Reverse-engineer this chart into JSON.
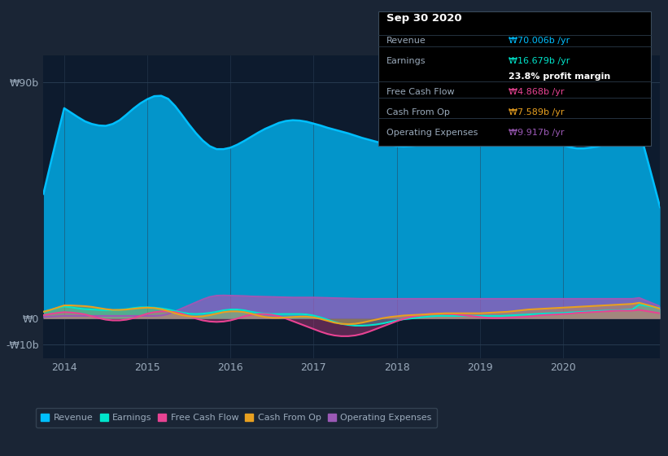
{
  "bg_color": "#1a2535",
  "plot_bg_color": "#0d1b2e",
  "grid_color": "#2a3f55",
  "text_color": "#9aaabb",
  "ylabel_top": "₩90b",
  "ylabel_zero": "₩0",
  "ylabel_bottom": "-₩10b",
  "x_labels": [
    "2014",
    "2015",
    "2016",
    "2017",
    "2018",
    "2019",
    "2020"
  ],
  "series_colors": {
    "Revenue": "#00bfff",
    "Earnings": "#00e5cc",
    "Free Cash Flow": "#e84393",
    "Cash From Op": "#e8a020",
    "Operating Expenses": "#9b59b6"
  },
  "info_box": {
    "title": "Sep 30 2020",
    "Revenue_label": "Revenue",
    "Revenue_value": "₩70.006b /yr",
    "Earnings_label": "Earnings",
    "Earnings_value": "₩16.679b /yr",
    "profit_margin": "23.8% profit margin",
    "FCF_label": "Free Cash Flow",
    "FCF_value": "₩4.868b /yr",
    "CashOp_label": "Cash From Op",
    "CashOp_value": "₩7.589b /yr",
    "OpEx_label": "Operating Expenses",
    "OpEx_value": "₩9.917b /yr"
  },
  "legend_entries": [
    "Revenue",
    "Earnings",
    "Free Cash Flow",
    "Cash From Op",
    "Operating Expenses"
  ]
}
